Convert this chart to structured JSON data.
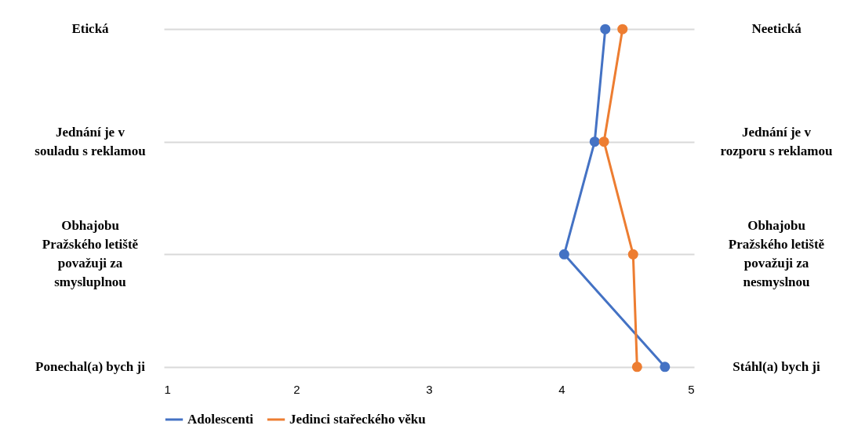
{
  "chart_data": {
    "type": "line",
    "orientation": "horizontal",
    "categories": [
      "Etická",
      "Jednání je v\nsouladu s reklamou",
      "Obhajobu\nPražského letiště\npovažuji za\nsmysluplnou",
      "Ponechal(a) bych ji"
    ],
    "y2_categories": [
      "Neetická",
      "Jednání  je v\nrozporu s reklamou",
      "Obhajobu\nPražského letiště\npovažuji za\nnesmyslnou",
      "Stáhl(a) bych ji"
    ],
    "series": [
      {
        "name": "Adolescenti",
        "color": "#4472c4",
        "values": [
          4.33,
          4.25,
          4.02,
          4.78
        ]
      },
      {
        "name": "Jedinci stařeckého věku",
        "color": "#ed7d31",
        "values": [
          4.46,
          4.32,
          4.54,
          4.57
        ]
      }
    ],
    "xlim": [
      1,
      5
    ],
    "xticks": [
      1,
      2,
      3,
      4,
      5
    ],
    "grid": "y",
    "legend": "bottom",
    "marker": "circle"
  }
}
